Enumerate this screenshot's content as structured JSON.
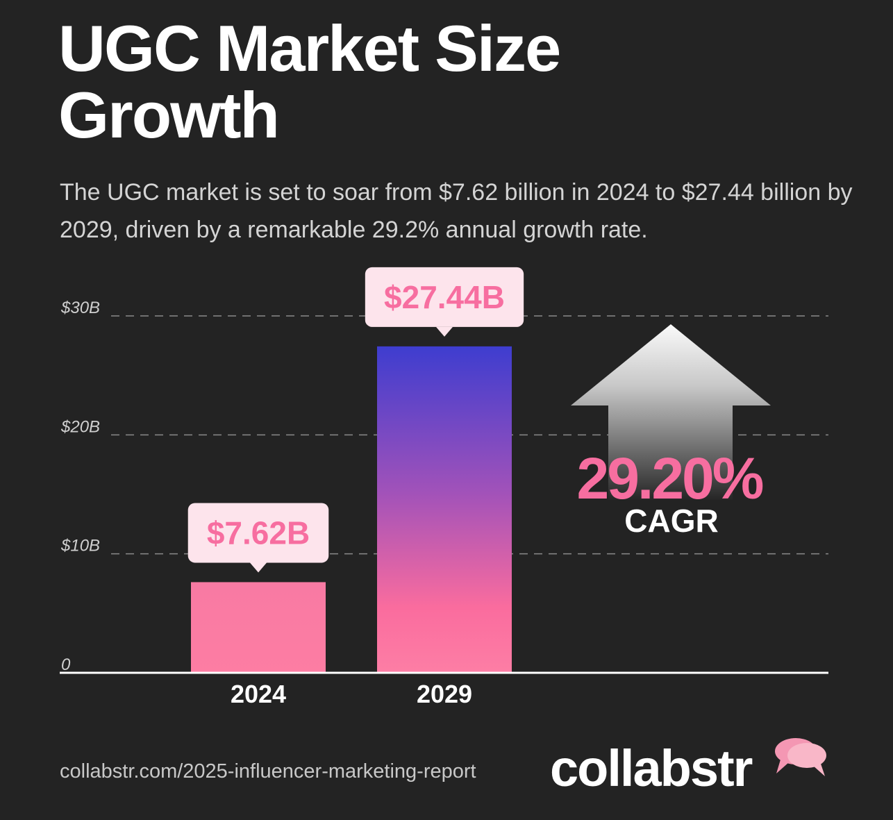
{
  "title_line1": "UGC Market Size",
  "title_line2": "Growth",
  "subtitle": "The UGC market is set to soar from $7.62 billion in 2024 to $27.44 billion by 2029, driven by a remarkable 29.2% annual growth rate.",
  "footer": {
    "source": "collabstr.com/2025-influencer-marketing-report",
    "brand": "collabstr"
  },
  "colors": {
    "background": "#232323",
    "accent_pink": "#f76ea0",
    "bar_top_blue": "#3e3dcf",
    "label_box": "#fde4ec"
  },
  "icons": [
    "up-arrow-icon",
    "speech-bubbles-icon"
  ],
  "chart_data": {
    "type": "bar",
    "categories": [
      "2024",
      "2029"
    ],
    "values": [
      7.62,
      27.44
    ],
    "data_labels": [
      "$7.62B",
      "$27.44B"
    ],
    "yticks": [
      {
        "value": 0,
        "label": "0"
      },
      {
        "value": 10,
        "label": "$10B"
      },
      {
        "value": 20,
        "label": "$20B"
      },
      {
        "value": 30,
        "label": "$30B"
      }
    ],
    "ylim": [
      0,
      30
    ],
    "grid": true,
    "annotation": {
      "value": "29.20%",
      "label": "CAGR"
    }
  }
}
